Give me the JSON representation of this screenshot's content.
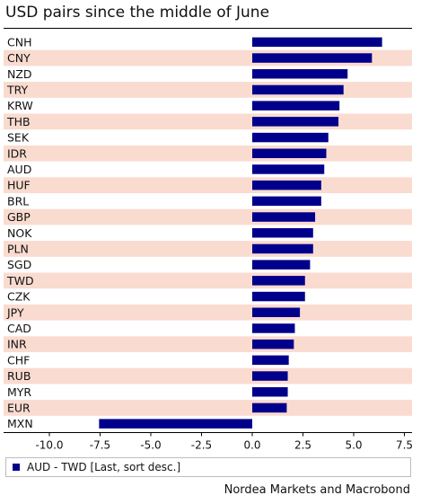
{
  "title": "USD pairs since the middle of June",
  "source": "Nordea Markets and Macrobond",
  "colors": {
    "bar": "#00008b",
    "band": "#fadbd0",
    "axis": "#000000"
  },
  "chart_data": {
    "type": "bar",
    "orientation": "horizontal",
    "categories": [
      "CNH",
      "CNY",
      "NZD",
      "TRY",
      "KRW",
      "THB",
      "SEK",
      "IDR",
      "AUD",
      "HUF",
      "BRL",
      "GBP",
      "NOK",
      "PLN",
      "SGD",
      "TWD",
      "CZK",
      "JPY",
      "CAD",
      "INR",
      "CHF",
      "RUB",
      "MYR",
      "EUR",
      "MXN"
    ],
    "series": [
      {
        "name": "AUD - TWD [Last, sort desc.]",
        "values": [
          6.4,
          5.9,
          4.7,
          4.5,
          4.3,
          4.25,
          3.75,
          3.65,
          3.55,
          3.4,
          3.4,
          3.1,
          3.0,
          3.0,
          2.85,
          2.6,
          2.6,
          2.35,
          2.1,
          2.05,
          1.8,
          1.75,
          1.75,
          1.7,
          -7.55
        ]
      }
    ],
    "xlim": [
      -10.5,
      7.9
    ],
    "xticks": [
      -10.0,
      -7.5,
      -5.0,
      -2.5,
      0.0,
      2.5,
      5.0,
      7.5
    ],
    "xtick_labels": [
      "-10.0",
      "-7.5",
      "-5.0",
      "-2.5",
      "0.0",
      "2.5",
      "5.0",
      "7.5"
    ],
    "legend_position": "bottom",
    "grid": false
  }
}
